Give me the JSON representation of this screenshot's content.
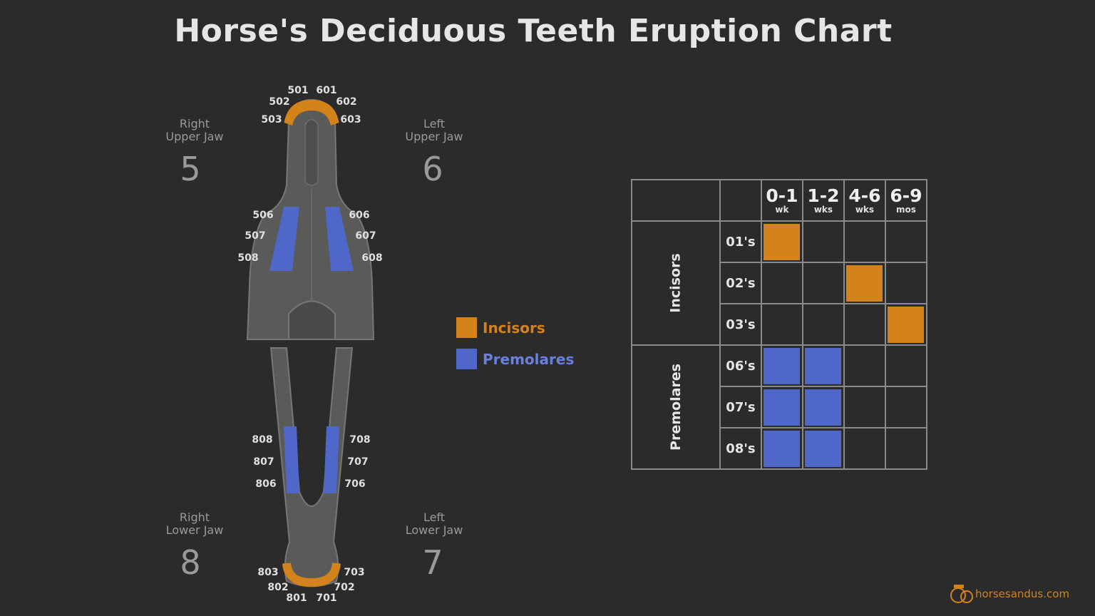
{
  "title": "Horse's Deciduous Teeth Eruption Chart",
  "colors": {
    "background": "#2b2b2b",
    "incisors": "#d4821a",
    "premolares": "#4f67c9",
    "jaw": "#5a5a58"
  },
  "quadrants": [
    {
      "id": "right-upper",
      "line1": "Right",
      "line2": "Upper Jaw",
      "number": "5"
    },
    {
      "id": "left-upper",
      "line1": "Left",
      "line2": "Upper Jaw",
      "number": "6"
    },
    {
      "id": "right-lower",
      "line1": "Right",
      "line2": "Lower Jaw",
      "number": "8"
    },
    {
      "id": "left-lower",
      "line1": "Left",
      "line2": "Lower Jaw",
      "number": "7"
    }
  ],
  "upper_teeth": [
    "501",
    "502",
    "503",
    "601",
    "602",
    "603",
    "506",
    "507",
    "508",
    "606",
    "607",
    "608"
  ],
  "lower_teeth": [
    "808",
    "807",
    "806",
    "708",
    "707",
    "706",
    "803",
    "802",
    "801",
    "701",
    "702",
    "703"
  ],
  "legend": [
    {
      "label": "Incisors",
      "color": "#d4821a"
    },
    {
      "label": "Premolares",
      "color": "#4f67c9"
    }
  ],
  "table": {
    "columns": [
      {
        "range": "0-1",
        "unit": "wk"
      },
      {
        "range": "1-2",
        "unit": "wks"
      },
      {
        "range": "4-6",
        "unit": "wks"
      },
      {
        "range": "6-9",
        "unit": "mos"
      }
    ],
    "groups": [
      {
        "label": "Incisors",
        "color": "#d4821a",
        "rows": [
          {
            "label": "01's",
            "filled": [
              true,
              false,
              false,
              false
            ]
          },
          {
            "label": "02's",
            "filled": [
              false,
              false,
              true,
              false
            ]
          },
          {
            "label": "03's",
            "filled": [
              false,
              false,
              false,
              true
            ]
          }
        ]
      },
      {
        "label": "Premolares",
        "color": "#4f67c9",
        "rows": [
          {
            "label": "06's",
            "filled": [
              true,
              true,
              false,
              false
            ]
          },
          {
            "label": "07's",
            "filled": [
              true,
              true,
              false,
              false
            ]
          },
          {
            "label": "08's",
            "filled": [
              true,
              true,
              false,
              false
            ]
          }
        ]
      }
    ]
  },
  "logo": {
    "text": "horsesandus.com"
  }
}
